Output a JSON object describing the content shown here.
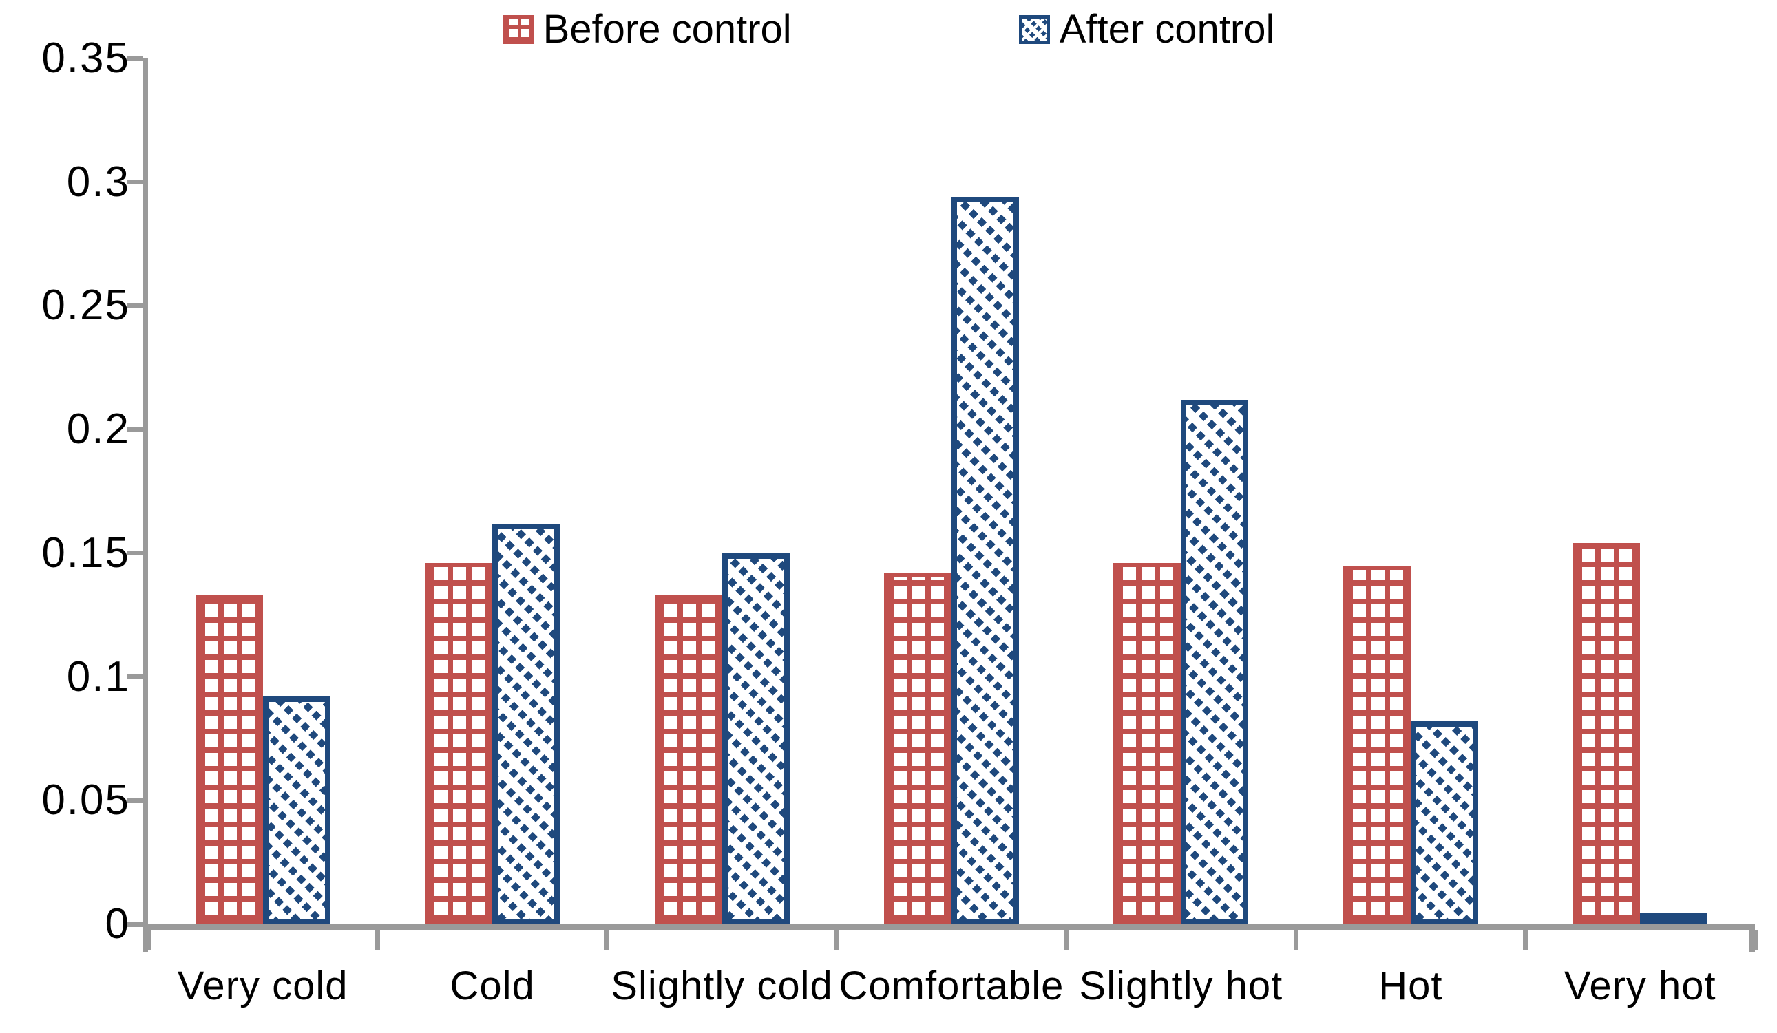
{
  "chart_data": {
    "type": "bar",
    "title": "",
    "xlabel": "",
    "ylabel": "",
    "categories": [
      "Very cold",
      "Cold",
      "Slightly cold",
      "Comfortable",
      "Slightly hot",
      "Hot",
      "Very hot"
    ],
    "series": [
      {
        "name": "Before control",
        "pattern": "grid",
        "color": "#C0504D",
        "values": [
          0.133,
          0.146,
          0.133,
          0.142,
          0.146,
          0.145,
          0.154
        ]
      },
      {
        "name": "After control",
        "pattern": "diagonal-dots",
        "color": "#1F497D",
        "values": [
          0.092,
          0.162,
          0.15,
          0.294,
          0.212,
          0.082,
          0.004
        ]
      }
    ],
    "ylim": [
      0,
      0.35
    ],
    "ytick_values": [
      0,
      0.05,
      0.1,
      0.15,
      0.2,
      0.25,
      0.3,
      0.35
    ],
    "ytick_labels": [
      "0",
      "0.05",
      "0.1",
      "0.15",
      "0.2",
      "0.25",
      "0.3",
      "0.35"
    ],
    "legend_position": "top-center",
    "grid": false,
    "axis_color": "#9A9A9A",
    "background": "#FFFFFF"
  }
}
